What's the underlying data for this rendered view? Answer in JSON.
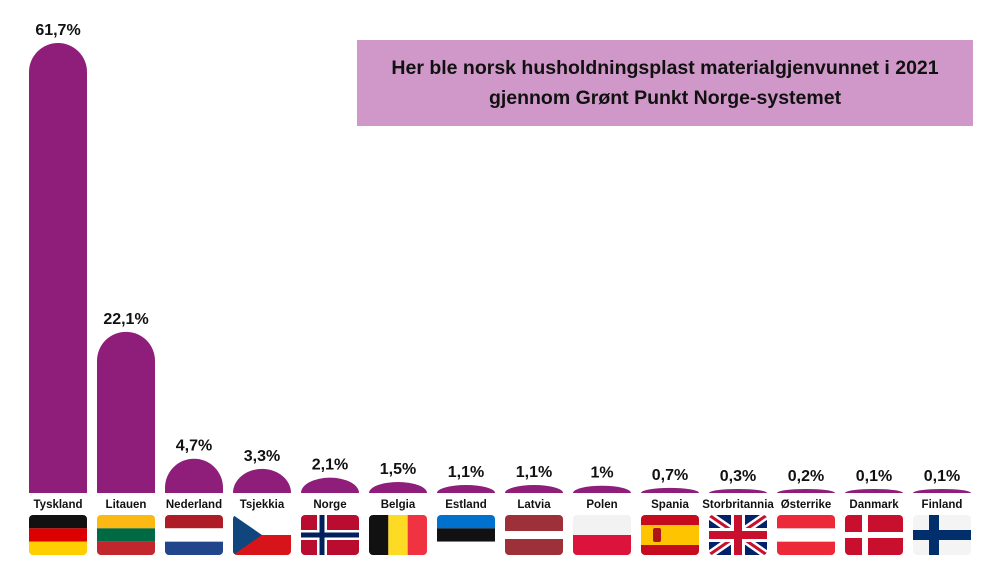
{
  "chart_data": {
    "type": "bar",
    "title": "Her ble norsk husholdningsplast materialgjenvunnet i 2021\ngjennom Grønt Punkt Norge-systemet",
    "categories": [
      "Tyskland",
      "Litauen",
      "Nederland",
      "Tsjekkia",
      "Norge",
      "Belgia",
      "Estland",
      "Latvia",
      "Polen",
      "Spania",
      "Storbritannia",
      "Østerrike",
      "Danmark",
      "Finland"
    ],
    "values": [
      61.7,
      22.1,
      4.7,
      3.3,
      2.1,
      1.5,
      1.1,
      1.1,
      1.0,
      0.7,
      0.3,
      0.2,
      0.1,
      0.1
    ],
    "value_labels": [
      "61,7%",
      "22,1%",
      "4,7%",
      "3,3%",
      "2,1%",
      "1,5%",
      "1,1%",
      "1,1%",
      "1%",
      "0,7%",
      "0,3%",
      "0,2%",
      "0,1%",
      "0,1%"
    ],
    "unit": "%",
    "ylim": [
      0,
      61.7
    ],
    "grid": false,
    "legend": "none",
    "bar_color": "#8e1e7a",
    "flags": [
      "germany-flag",
      "lithuania-flag",
      "netherlands-flag",
      "czech-flag",
      "norway-flag",
      "belgium-flag",
      "estonia-flag",
      "latvia-flag",
      "poland-flag",
      "spain-flag",
      "uk-flag",
      "austria-flag",
      "denmark-flag",
      "finland-flag"
    ]
  }
}
